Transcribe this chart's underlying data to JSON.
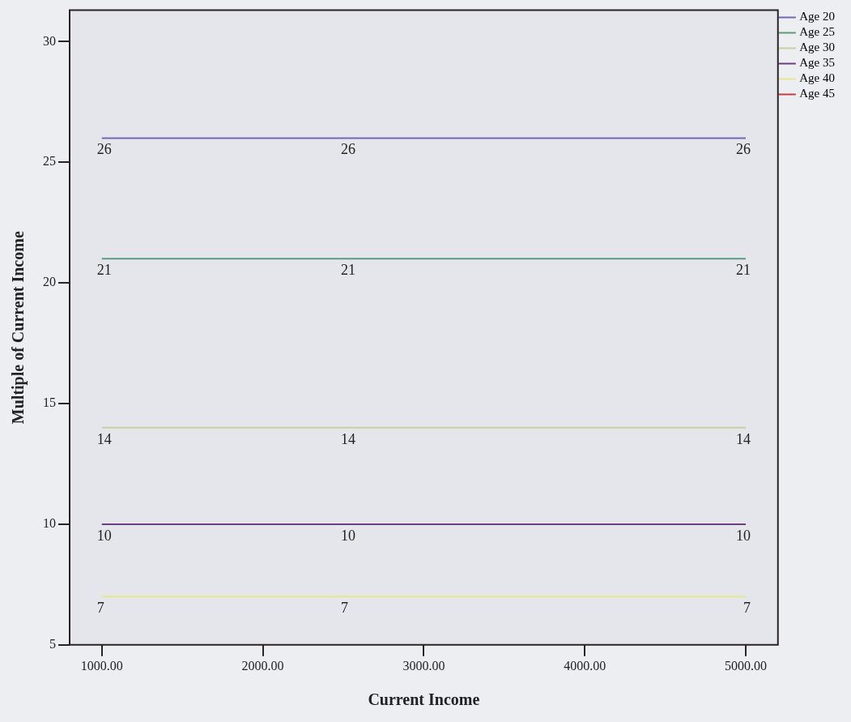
{
  "chart_data": {
    "type": "line",
    "xlabel": "Current Income",
    "ylabel": "Multiple of Current Income",
    "x": [
      1000,
      2500,
      5000
    ],
    "series": [
      {
        "name": "Age 20",
        "color": "#6a6ab8",
        "values": [
          26,
          26,
          26
        ]
      },
      {
        "name": "Age 25",
        "color": "#5f9a7c",
        "values": [
          21,
          21,
          21
        ]
      },
      {
        "name": "Age 30",
        "color": "#c8d0a0",
        "values": [
          14,
          14,
          14
        ]
      },
      {
        "name": "Age 35",
        "color": "#6b3f7f",
        "values": [
          10,
          10,
          10
        ]
      },
      {
        "name": "Age 40",
        "color": "#e6e68f",
        "values": [
          7,
          7,
          7
        ]
      },
      {
        "name": "Age 45",
        "color": "#c04040",
        "values": [
          null,
          null,
          null
        ]
      }
    ],
    "xlim": [
      800,
      5200
    ],
    "xticks": [
      {
        "value": 1000,
        "label": "1000.00"
      },
      {
        "value": 2000,
        "label": "2000.00"
      },
      {
        "value": 3000,
        "label": "3000.00"
      },
      {
        "value": 4000,
        "label": "4000.00"
      },
      {
        "value": 5000,
        "label": "5000.00"
      }
    ],
    "ylim": [
      5,
      31.3
    ],
    "yticks": [
      5,
      10,
      15,
      20,
      25,
      30
    ],
    "grid": false,
    "legend": "top right",
    "marker": "none",
    "line_style": "solid",
    "data_labels": true
  }
}
